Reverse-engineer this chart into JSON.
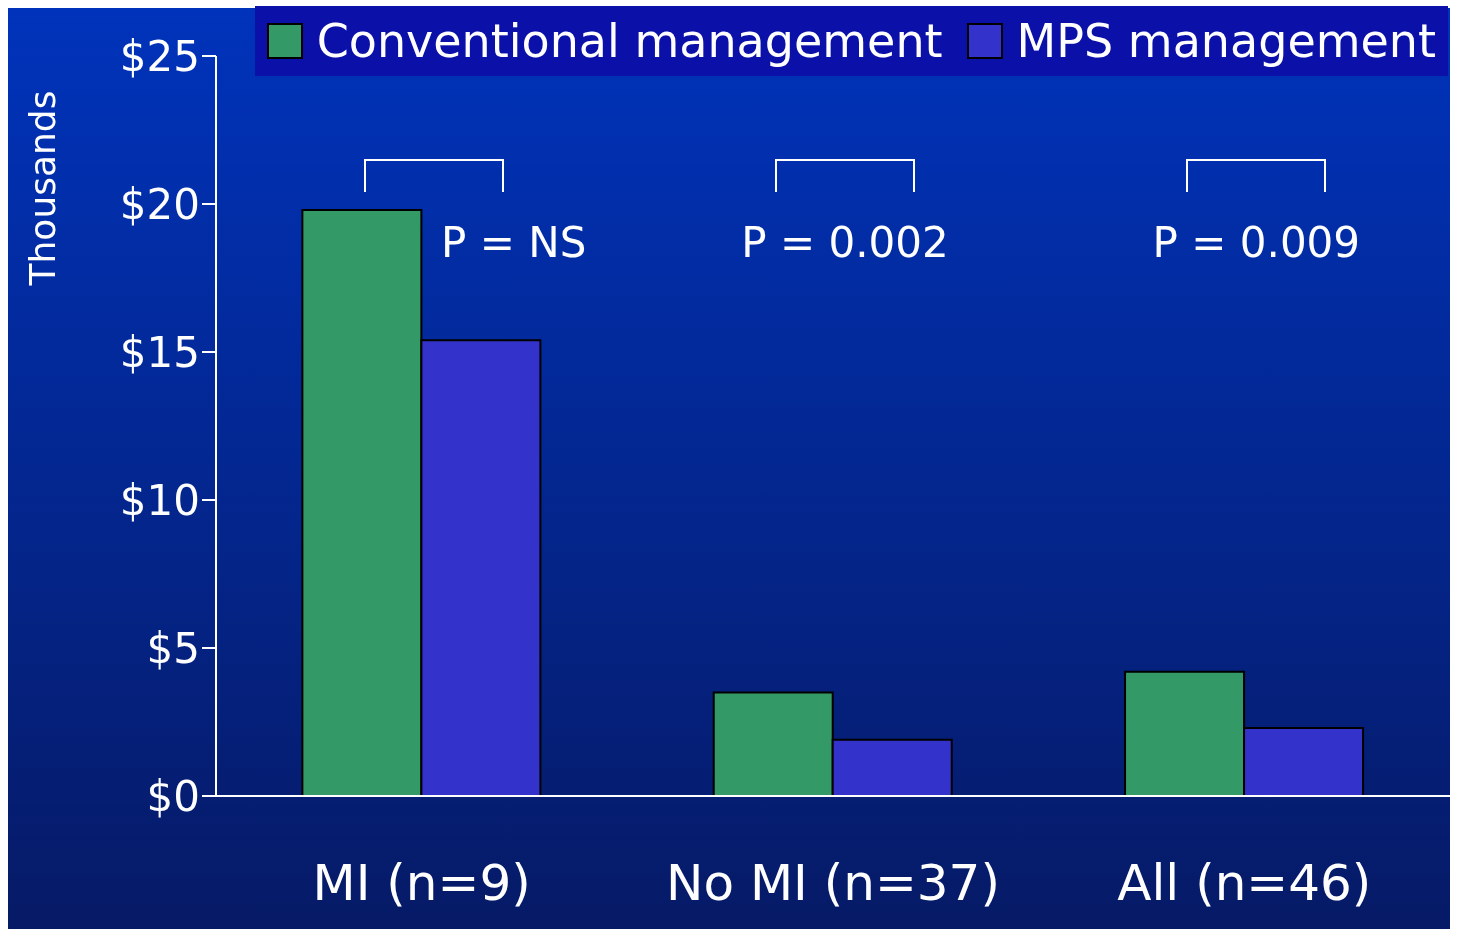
{
  "chart_data": {
    "type": "bar",
    "ylabel": "Thousands",
    "categories": [
      "MI (n=9)",
      "No MI (n=37)",
      "All (n=46)"
    ],
    "series": [
      {
        "name": "Conventional management",
        "color": "#339966",
        "values": [
          19.8,
          3.5,
          4.2
        ]
      },
      {
        "name": "MPS management",
        "color": "#3333cc",
        "values": [
          15.4,
          1.9,
          2.3
        ]
      }
    ],
    "ylim": [
      0,
      25
    ],
    "yticks": [
      {
        "value": 0,
        "label": "$0"
      },
      {
        "value": 5,
        "label": "$5"
      },
      {
        "value": 10,
        "label": "$10"
      },
      {
        "value": 15,
        "label": "$15"
      },
      {
        "value": 20,
        "label": "$20"
      },
      {
        "value": 25,
        "label": "$25"
      }
    ],
    "annotations": [
      "P = NS",
      "P = 0.002",
      "P = 0.009"
    ],
    "legend": "top right",
    "grid": false
  }
}
